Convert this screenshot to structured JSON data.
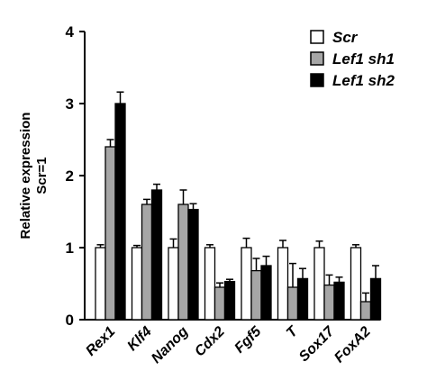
{
  "chart_data": {
    "type": "bar",
    "ylabel_line1": "Relative expression",
    "ylabel_line2": "Scr=1",
    "ylim": [
      0,
      4
    ],
    "yticks": [
      "0",
      "1",
      "2",
      "3",
      "4"
    ],
    "categories": [
      "Rex1",
      "Klf4",
      "Nanog",
      "Cdx2",
      "Fgf5",
      "T",
      "Sox17",
      "FoxA2"
    ],
    "series": [
      {
        "name": "Scr",
        "color": "#ffffff",
        "values": [
          1.0,
          1.0,
          1.0,
          1.0,
          1.0,
          1.0,
          1.0,
          1.0
        ],
        "errors": [
          0.04,
          0.03,
          0.12,
          0.04,
          0.13,
          0.1,
          0.09,
          0.04
        ]
      },
      {
        "name": "Lef1 sh1",
        "color": "#a6a6a6",
        "values": [
          2.4,
          1.6,
          1.6,
          0.45,
          0.68,
          0.45,
          0.48,
          0.25
        ],
        "errors": [
          0.1,
          0.07,
          0.2,
          0.06,
          0.17,
          0.33,
          0.14,
          0.12
        ]
      },
      {
        "name": "Lef1 sh2",
        "color": "#000000",
        "values": [
          3.0,
          1.8,
          1.53,
          0.53,
          0.75,
          0.57,
          0.52,
          0.57
        ],
        "errors": [
          0.16,
          0.08,
          0.08,
          0.03,
          0.13,
          0.14,
          0.07,
          0.18
        ]
      }
    ],
    "legend": "top-right",
    "grid": false
  }
}
